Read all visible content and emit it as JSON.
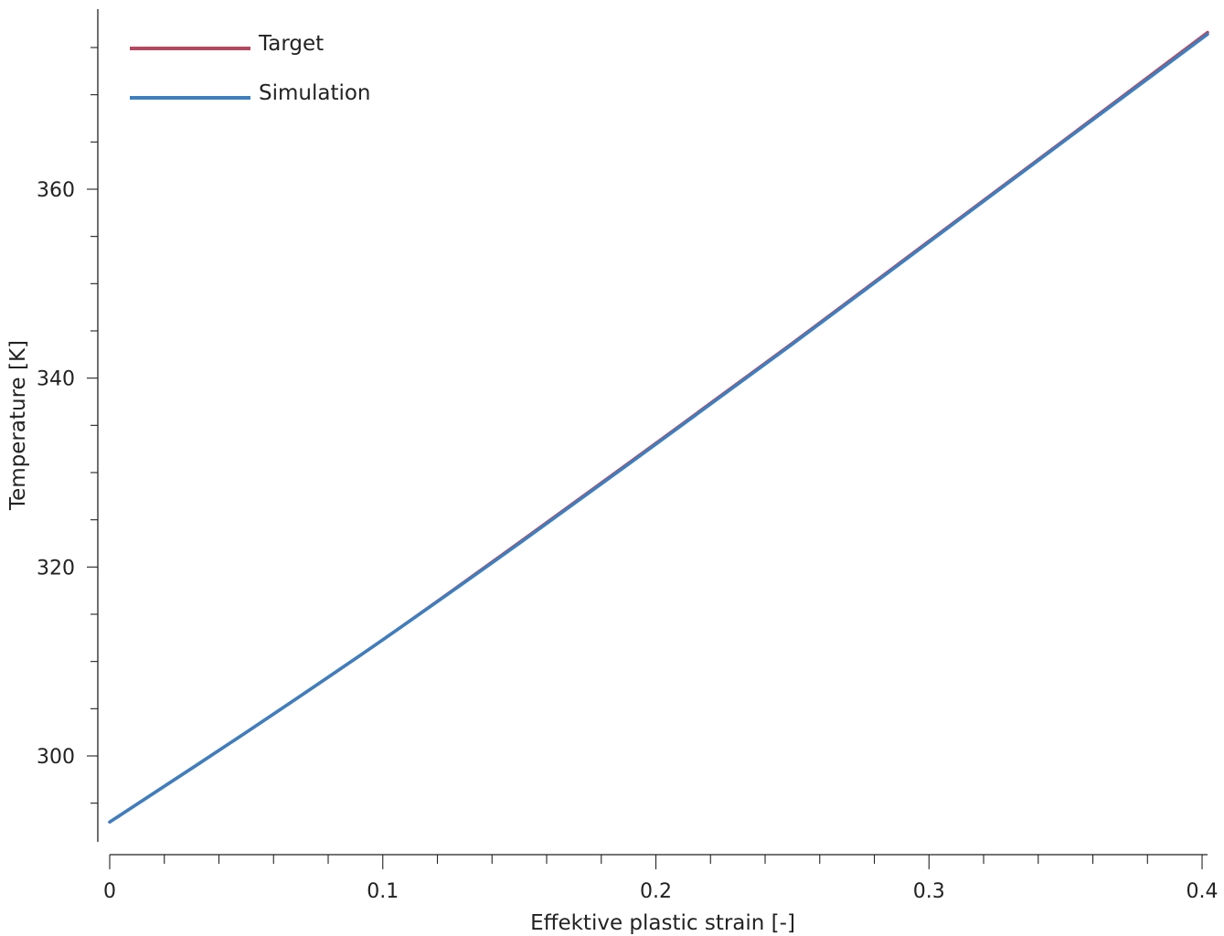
{
  "chart_data": {
    "type": "line",
    "title": "",
    "xlabel": "Effektive plastic strain [-]",
    "ylabel": "Temperature [K]",
    "xlim": [
      0,
      0.402
    ],
    "ylim": [
      291,
      380
    ],
    "x_ticks": [
      0,
      0.1,
      0.2,
      0.3,
      0.4
    ],
    "x_tick_labels": [
      "0",
      "0.1",
      "0.2",
      "0.3",
      "0.4"
    ],
    "x_minor_step": 0.02,
    "y_ticks": [
      300,
      320,
      340,
      360
    ],
    "y_tick_labels": [
      "300",
      "320",
      "340",
      "360"
    ],
    "y_minor_step": 5,
    "grid": false,
    "legend_position": "top-left",
    "series": [
      {
        "name": "Target",
        "color": "#b5485f",
        "x": [
          0,
          0.05,
          0.1,
          0.15,
          0.2,
          0.25,
          0.3,
          0.35,
          0.402
        ],
        "y": [
          293.0,
          302.5,
          312.3,
          322.6,
          333.1,
          343.7,
          354.5,
          365.3,
          376.6
        ]
      },
      {
        "name": "Simulation",
        "color": "#3d7fbf",
        "x": [
          0,
          0.05,
          0.1,
          0.15,
          0.2,
          0.25,
          0.3,
          0.35,
          0.402
        ],
        "y": [
          293.0,
          302.5,
          312.3,
          322.5,
          333.0,
          343.6,
          354.4,
          365.2,
          376.4
        ]
      }
    ]
  }
}
